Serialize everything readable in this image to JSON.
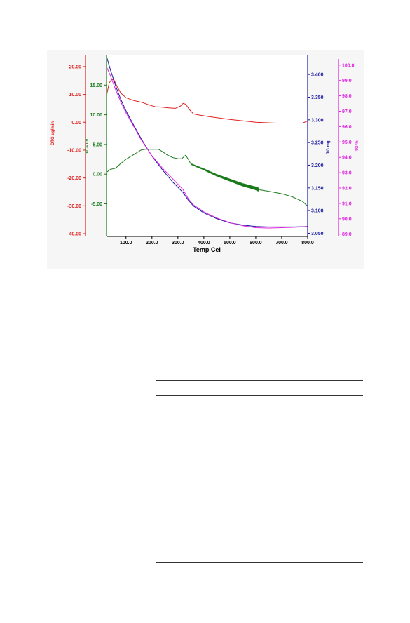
{
  "page": {
    "background": "#ffffff"
  },
  "chart_data": {
    "type": "line",
    "xlabel": "Temp Cel",
    "x_ticks": [
      100,
      200,
      300,
      400,
      500,
      600,
      700,
      800
    ],
    "x_tick_labels": [
      "100.0",
      "200.0",
      "300.0",
      "400.0",
      "500.0",
      "600.0",
      "700.0",
      "800.0"
    ],
    "xlim": [
      25,
      800
    ],
    "grid": false,
    "axes": [
      {
        "id": "dtg",
        "label": "DTG ug/min",
        "color": "#e02020",
        "side": "left",
        "ylim": [
          -41,
          24
        ],
        "ticks": [
          20,
          10,
          0,
          -10,
          -20,
          -30,
          -40
        ],
        "tick_labels": [
          "20.00",
          "10.00",
          "0.00",
          "-10.00",
          "-20.00",
          "-30.00",
          "-40.00"
        ]
      },
      {
        "id": "dta",
        "label": "DTA uV",
        "color": "#1a7a1a",
        "side": "left",
        "ylim": [
          -10.5,
          20
        ],
        "ticks": [
          15,
          10,
          5,
          0,
          -5
        ],
        "tick_labels": [
          "15.00",
          "10.00",
          "5.00",
          "0.00",
          "-5.00"
        ]
      },
      {
        "id": "tgmg",
        "label": "TG mg",
        "color": "#1a1aa0",
        "side": "right",
        "ylim": [
          3.043,
          3.442
        ],
        "ticks": [
          3.4,
          3.35,
          3.3,
          3.25,
          3.2,
          3.15,
          3.1,
          3.05
        ],
        "tick_labels": [
          "3.400",
          "3.350",
          "3.300",
          "3.250",
          "3.200",
          "3.150",
          "3.100",
          "3.050"
        ]
      },
      {
        "id": "tgpct",
        "label": "TG %",
        "color": "#e020e0",
        "side": "right",
        "ylim": [
          88.85,
          100.4
        ],
        "ticks": [
          100,
          99,
          98,
          97,
          96,
          95,
          94,
          93,
          92,
          91,
          90,
          89
        ],
        "tick_labels": [
          "100.0",
          "99.0",
          "98.0",
          "97.0",
          "96.0",
          "95.0",
          "94.0",
          "93.0",
          "92.0",
          "91.0",
          "90.0",
          "89.0"
        ]
      }
    ],
    "series": [
      {
        "axis": "dtg",
        "color": "#e02020",
        "x": [
          25,
          35,
          45,
          55,
          65,
          80,
          100,
          130,
          160,
          190,
          215,
          230,
          260,
          290,
          310,
          320,
          330,
          345,
          360,
          380,
          420,
          500,
          600,
          680,
          740,
          780,
          800
        ],
        "y": [
          9.5,
          14.0,
          15.5,
          15.0,
          13.0,
          10.5,
          8.8,
          7.8,
          7.2,
          6.2,
          5.5,
          5.5,
          5.2,
          5.0,
          5.8,
          6.8,
          6.5,
          4.5,
          3.0,
          2.6,
          2.0,
          1.0,
          0.0,
          -0.3,
          -0.3,
          -0.3,
          0.5
        ]
      },
      {
        "axis": "dta",
        "color": "#1a7a1a",
        "noise_from": 350,
        "noise_to": 610,
        "x": [
          25,
          40,
          60,
          80,
          100,
          130,
          160,
          180,
          200,
          225,
          240,
          260,
          280,
          300,
          315,
          330,
          340,
          350,
          400,
          450,
          500,
          550,
          600,
          610,
          650,
          700,
          740,
          780,
          800
        ],
        "y": [
          0.3,
          0.8,
          1.0,
          1.8,
          2.5,
          3.3,
          4.1,
          4.2,
          4.2,
          4.2,
          3.8,
          3.2,
          2.8,
          2.6,
          2.6,
          3.2,
          2.5,
          1.7,
          0.8,
          -0.2,
          -1.0,
          -1.8,
          -2.4,
          -2.6,
          -2.9,
          -3.3,
          -3.8,
          -4.6,
          -5.4
        ]
      },
      {
        "axis": "tgmg",
        "color": "#1a1aa0",
        "x": [
          25,
          40,
          60,
          80,
          100,
          130,
          160,
          200,
          240,
          280,
          320,
          340,
          360,
          400,
          450,
          500,
          550,
          600,
          650,
          700,
          750,
          800
        ],
        "y": [
          3.44,
          3.41,
          3.375,
          3.345,
          3.32,
          3.288,
          3.257,
          3.22,
          3.19,
          3.163,
          3.14,
          3.123,
          3.11,
          3.095,
          3.082,
          3.073,
          3.068,
          3.065,
          3.064,
          3.064,
          3.064,
          3.065
        ]
      },
      {
        "axis": "tgpct",
        "color": "#e020e0",
        "x": [
          25,
          40,
          60,
          80,
          100,
          130,
          160,
          200,
          240,
          280,
          320,
          340,
          360,
          400,
          450,
          500,
          550,
          600,
          650,
          700,
          750,
          800
        ],
        "y": [
          99.9,
          99.3,
          98.4,
          97.6,
          96.9,
          96.0,
          95.1,
          94.1,
          93.3,
          92.6,
          91.9,
          91.3,
          90.9,
          90.45,
          90.05,
          89.75,
          89.55,
          89.42,
          89.4,
          89.42,
          89.45,
          89.5
        ]
      }
    ]
  }
}
